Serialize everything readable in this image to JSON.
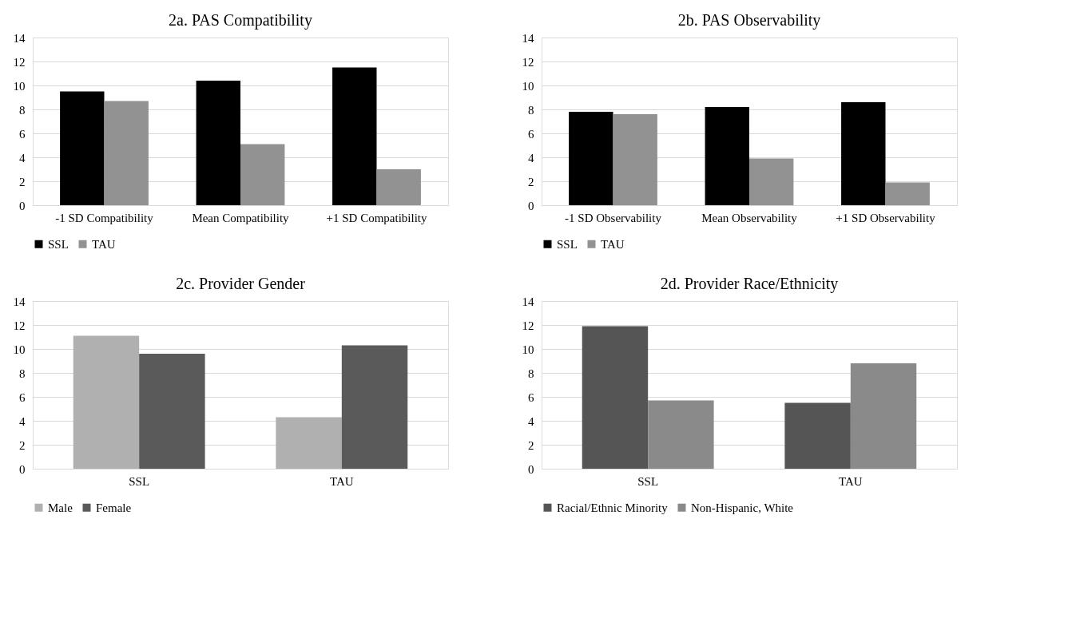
{
  "chart_data": [
    {
      "type": "bar",
      "title": "2a. PAS Compatibility",
      "categories": [
        "-1 SD Compatibility",
        "Mean Compatibility",
        "+1 SD Compatibility"
      ],
      "series": [
        {
          "name": "SSL",
          "color": "#000000",
          "values": [
            9.5,
            10.4,
            11.5
          ]
        },
        {
          "name": "TAU",
          "color": "#929292",
          "values": [
            8.7,
            5.1,
            3.0
          ]
        }
      ],
      "ylim": [
        0,
        14
      ],
      "yticks": [
        0,
        2,
        4,
        6,
        8,
        10,
        12,
        14
      ],
      "grid": "y",
      "legend": "bottom"
    },
    {
      "type": "bar",
      "title": "2b. PAS Observability",
      "categories": [
        "-1 SD Observability",
        "Mean Observability",
        "+1 SD Observability"
      ],
      "series": [
        {
          "name": "SSL",
          "color": "#000000",
          "values": [
            7.8,
            8.2,
            8.6
          ]
        },
        {
          "name": "TAU",
          "color": "#929292",
          "values": [
            7.6,
            3.9,
            1.9
          ]
        }
      ],
      "ylim": [
        0,
        14
      ],
      "yticks": [
        0,
        2,
        4,
        6,
        8,
        10,
        12,
        14
      ],
      "grid": "y",
      "legend": "bottom"
    },
    {
      "type": "bar",
      "title": "2c. Provider Gender",
      "categories": [
        "SSL",
        "TAU"
      ],
      "series": [
        {
          "name": "Male",
          "color": "#b0b0b0",
          "values": [
            11.1,
            4.3
          ]
        },
        {
          "name": "Female",
          "color": "#5a5a5a",
          "values": [
            9.6,
            10.3
          ]
        }
      ],
      "ylim": [
        0,
        14
      ],
      "yticks": [
        0,
        2,
        4,
        6,
        8,
        10,
        12,
        14
      ],
      "grid": "y",
      "legend": "bottom"
    },
    {
      "type": "bar",
      "title": "2d. Provider Race/Ethnicity",
      "categories": [
        "SSL",
        "TAU"
      ],
      "series": [
        {
          "name": "Racial/Ethnic Minority",
          "color": "#555555",
          "values": [
            11.9,
            5.5
          ]
        },
        {
          "name": "Non-Hispanic, White",
          "color": "#8a8a8a",
          "values": [
            5.7,
            8.8
          ]
        }
      ],
      "ylim": [
        0,
        14
      ],
      "yticks": [
        0,
        2,
        4,
        6,
        8,
        10,
        12,
        14
      ],
      "grid": "y",
      "legend": "bottom"
    }
  ]
}
